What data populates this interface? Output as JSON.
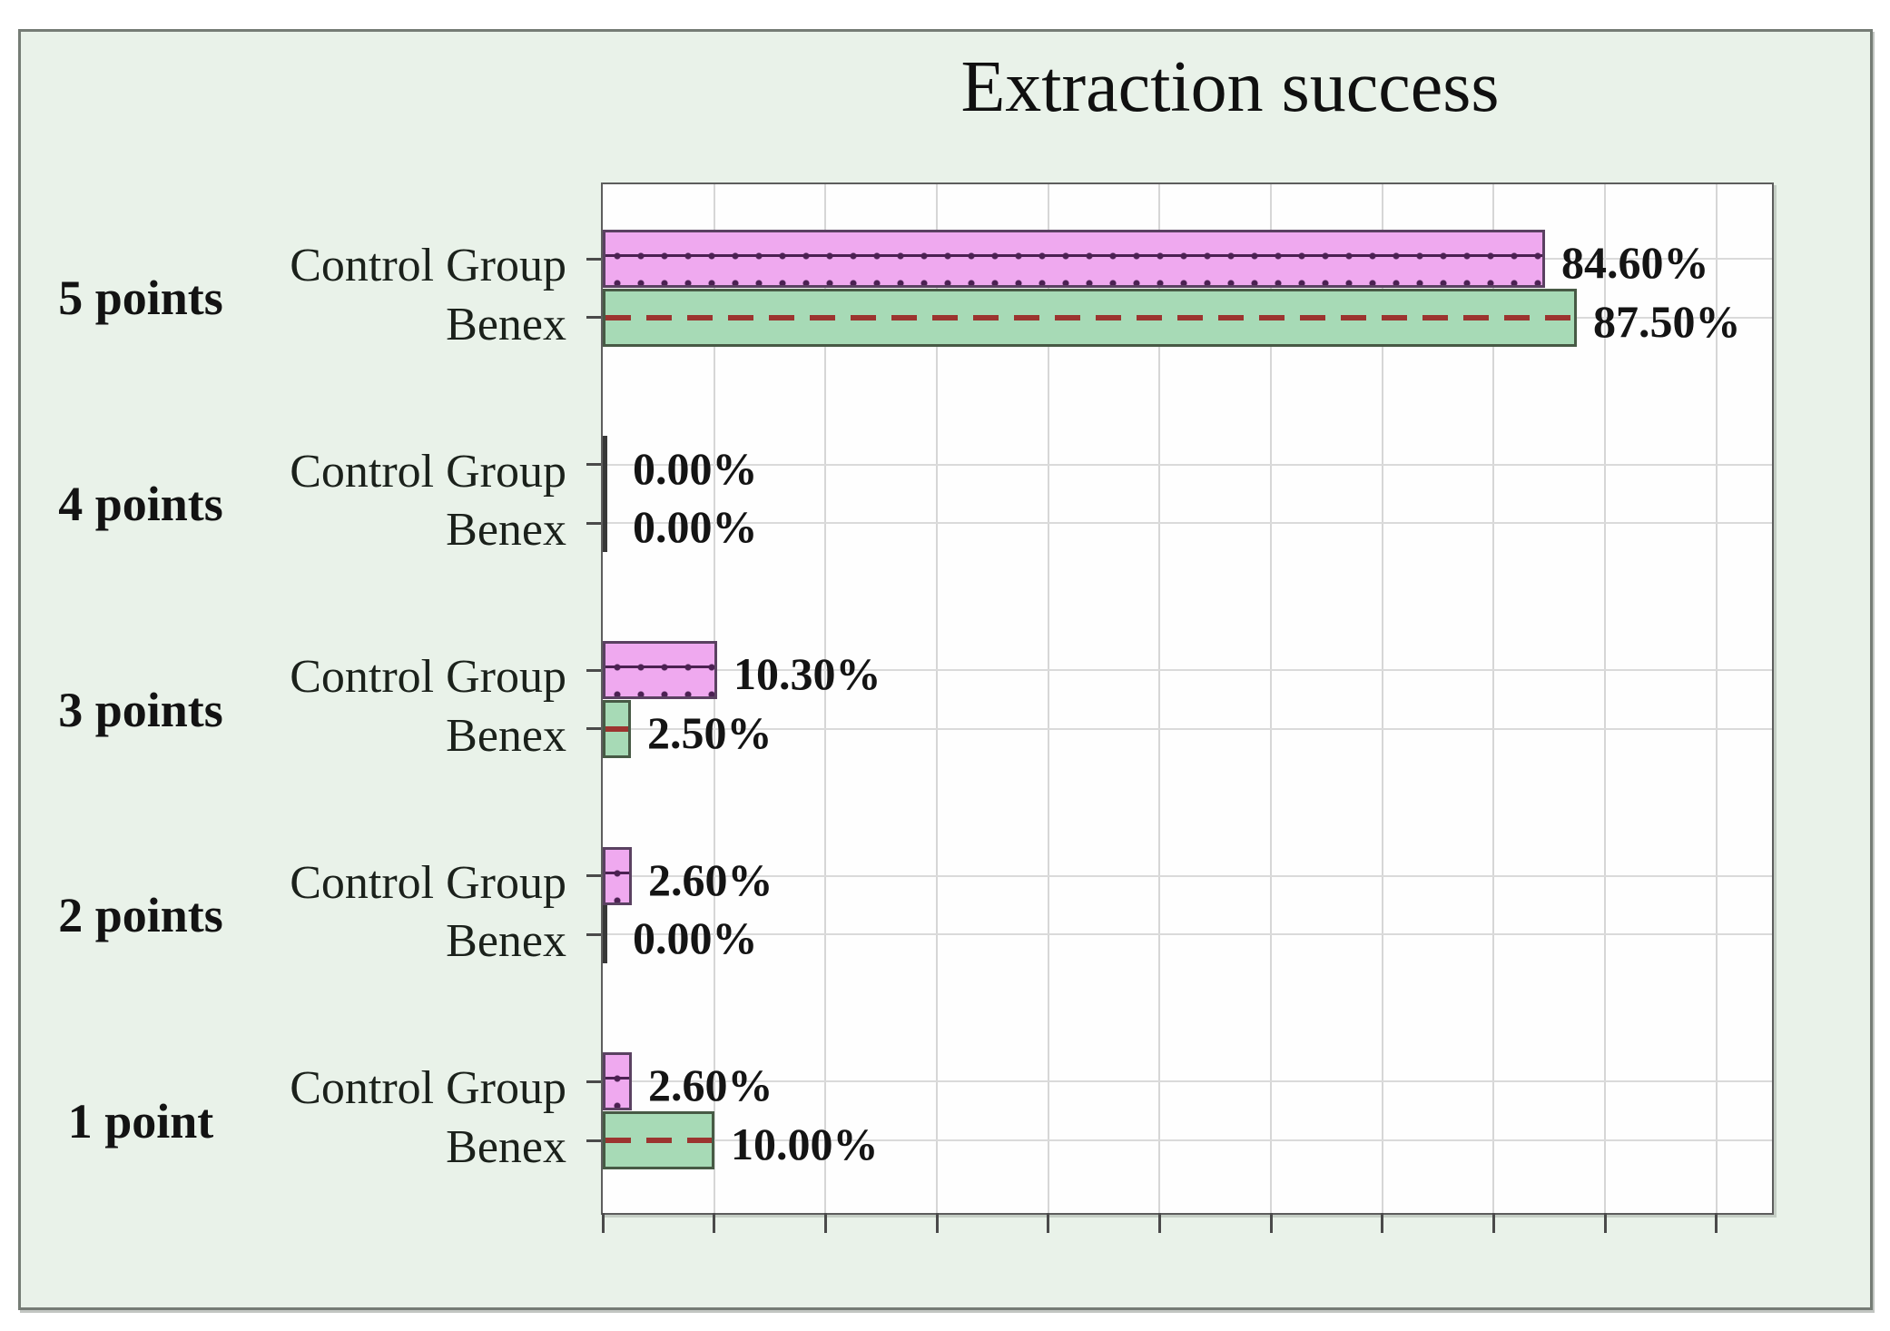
{
  "title": "Extraction success",
  "colors": {
    "page_background": "#e9f2e9",
    "page_border": "#757c75",
    "plot_background": "#fefefe",
    "control_fill": "#efa9ef",
    "control_border": "#5a4161",
    "control_pattern_dot": "#4b2152",
    "benex_fill": "#a7dab6",
    "benex_border": "#475a45",
    "benex_dash": "#9c342f",
    "gridline": "#d6d6d6",
    "axis": "#5d5d5d",
    "text": "#141414"
  },
  "chart_data": {
    "type": "bar",
    "orientation": "horizontal",
    "title": "Extraction success",
    "categories": [
      "5 points",
      "4 points",
      "3 points",
      "2 points",
      "1 point"
    ],
    "series": [
      {
        "name": "Control Group",
        "values": [
          84.6,
          0.0,
          10.3,
          2.6,
          2.6
        ],
        "labels": [
          "84.60%",
          "0.00%",
          "10.30%",
          "2.60%",
          "2.60%"
        ],
        "style": "pink-dotted"
      },
      {
        "name": "Benex",
        "values": [
          87.5,
          0.0,
          2.5,
          0.0,
          10.0
        ],
        "labels": [
          "87.50%",
          "0.00%",
          "2.50%",
          "0.00%",
          "10.00%"
        ],
        "style": "green-red-dashed"
      }
    ],
    "value_axis": {
      "min": 0,
      "max": 105,
      "gridline_step": 10,
      "tick_step": 10,
      "tick_labels_visible": false
    },
    "grid": true,
    "data_labels": true,
    "legend_position": "none"
  }
}
